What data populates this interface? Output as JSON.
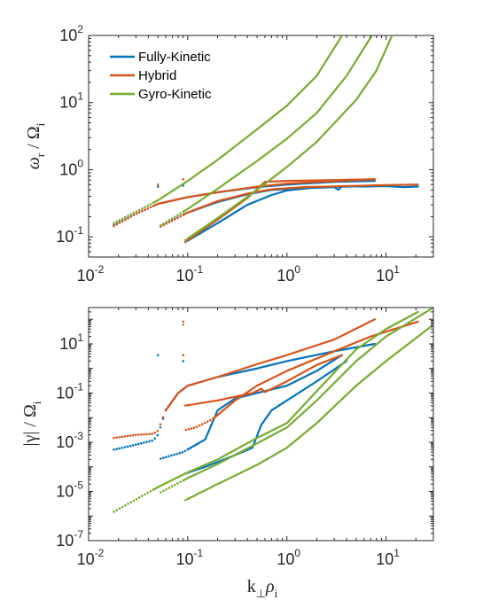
{
  "chart_data": [
    {
      "type": "line",
      "x_scale": "log",
      "y_scale": "log",
      "xlim": [
        0.01,
        30
      ],
      "ylim": [
        0.05,
        100
      ],
      "ylabel": {
        "main": "ω",
        "sub1": "r",
        "sep": " / Ω",
        "sub2": "i"
      },
      "xticks": [
        {
          "value": 0.01,
          "base": "10",
          "exp": "-2"
        },
        {
          "value": 0.1,
          "base": "10",
          "exp": "-1"
        },
        {
          "value": 1,
          "base": "10",
          "exp": "0"
        },
        {
          "value": 10,
          "base": "10",
          "exp": "1"
        }
      ],
      "yticks": [
        {
          "value": 0.1,
          "base": "10",
          "exp": "-1"
        },
        {
          "value": 1,
          "base": "10",
          "exp": "0"
        },
        {
          "value": 10,
          "base": "10",
          "exp": "1"
        },
        {
          "value": 100,
          "base": "10",
          "exp": "2"
        }
      ],
      "legend": {
        "position": "top-left",
        "entries": [
          {
            "name": "Fully-Kinetic",
            "color": "#0072BD"
          },
          {
            "name": "Hybrid",
            "color": "#D95319"
          },
          {
            "name": "Gyro-Kinetic",
            "color": "#77AC30"
          }
        ]
      },
      "series": [
        {
          "model": "Fully-Kinetic",
          "color": "#0072BD",
          "dots_until": 0.045,
          "points": [
            [
              0.018,
              0.15
            ],
            [
              0.03,
              0.22
            ],
            [
              0.05,
              0.31
            ],
            [
              0.1,
              0.39
            ],
            [
              0.2,
              0.46
            ],
            [
              0.5,
              0.55
            ],
            [
              1,
              0.6
            ],
            [
              3,
              0.66
            ],
            [
              7.7,
              0.68
            ]
          ]
        },
        {
          "model": "Fully-Kinetic",
          "color": "#0072BD",
          "dots_until": 0.09,
          "points": [
            [
              0.05,
              0.14
            ],
            [
              0.1,
              0.23
            ],
            [
              0.2,
              0.33
            ],
            [
              0.4,
              0.43
            ],
            [
              0.7,
              0.5
            ],
            [
              1.5,
              0.53
            ],
            [
              3,
              0.55
            ],
            [
              3.3,
              0.5
            ],
            [
              3.6,
              0.57
            ],
            [
              6,
              0.56
            ],
            [
              10,
              0.57
            ],
            [
              15,
              0.55
            ],
            [
              21,
              0.56
            ]
          ]
        },
        {
          "model": "Fully-Kinetic",
          "color": "#0072BD",
          "dots_until": 0.1,
          "points": [
            [
              0.09,
              0.08
            ],
            [
              0.2,
              0.16
            ],
            [
              0.4,
              0.3
            ],
            [
              0.7,
              0.42
            ],
            [
              1,
              0.49
            ],
            [
              2,
              0.55
            ],
            [
              4,
              0.56
            ],
            [
              7.7,
              0.58
            ]
          ]
        },
        {
          "model": "Hybrid",
          "color": "#D95319",
          "dots_until": 0.045,
          "points": [
            [
              0.018,
              0.145
            ],
            [
              0.03,
              0.22
            ],
            [
              0.05,
              0.31
            ],
            [
              0.1,
              0.39
            ],
            [
              0.2,
              0.46
            ],
            [
              0.5,
              0.56
            ],
            [
              1,
              0.62
            ],
            [
              3,
              0.68
            ],
            [
              7.7,
              0.72
            ]
          ]
        },
        {
          "model": "Hybrid",
          "color": "#D95319",
          "dots_until": 0.09,
          "points": [
            [
              0.05,
              0.135
            ],
            [
              0.1,
              0.23
            ],
            [
              0.2,
              0.34
            ],
            [
              0.4,
              0.44
            ],
            [
              0.7,
              0.51
            ],
            [
              1.5,
              0.55
            ],
            [
              4,
              0.57
            ],
            [
              10,
              0.59
            ],
            [
              21,
              0.6
            ]
          ]
        },
        {
          "model": "Hybrid",
          "color": "#D95319",
          "dots_until": 0.1,
          "points": [
            [
              0.09,
              0.08
            ],
            [
              0.2,
              0.18
            ],
            [
              0.4,
              0.38
            ],
            [
              0.6,
              0.66
            ],
            [
              1,
              0.68
            ],
            [
              3,
              0.7
            ],
            [
              7.7,
              0.72
            ]
          ]
        },
        {
          "model": "Gyro-Kinetic",
          "color": "#77AC30",
          "dots_until": 0.045,
          "points": [
            [
              0.018,
              0.16
            ],
            [
              0.05,
              0.35
            ],
            [
              0.1,
              0.68
            ],
            [
              0.2,
              1.4
            ],
            [
              0.5,
              4
            ],
            [
              1,
              9
            ],
            [
              2,
              25
            ],
            [
              3.6,
              100
            ]
          ]
        },
        {
          "model": "Gyro-Kinetic",
          "color": "#77AC30",
          "dots_until": 0.09,
          "points": [
            [
              0.05,
              0.14
            ],
            [
              0.1,
              0.26
            ],
            [
              0.2,
              0.52
            ],
            [
              0.5,
              1.35
            ],
            [
              1,
              2.9
            ],
            [
              2,
              7
            ],
            [
              4,
              25
            ],
            [
              7.2,
              100
            ]
          ]
        },
        {
          "model": "Gyro-Kinetic",
          "color": "#77AC30",
          "dots_until": 0.1,
          "points": [
            [
              0.09,
              0.085
            ],
            [
              0.2,
              0.19
            ],
            [
              0.5,
              0.5
            ],
            [
              1,
              1.1
            ],
            [
              2,
              2.6
            ],
            [
              5,
              11
            ],
            [
              8,
              30
            ],
            [
              11.5,
              100
            ]
          ]
        }
      ]
    },
    {
      "type": "line",
      "x_scale": "log",
      "y_scale": "log",
      "xlim": [
        0.01,
        30
      ],
      "ylim": [
        1e-07,
        300
      ],
      "xlabel": {
        "main": "k",
        "sub1": "⊥",
        "main2": "ρ",
        "sub2": "i"
      },
      "ylabel": {
        "main": "|γ| / Ω",
        "sub2": "i"
      },
      "xticks": [
        {
          "value": 0.01,
          "base": "10",
          "exp": "-2"
        },
        {
          "value": 0.1,
          "base": "10",
          "exp": "-1"
        },
        {
          "value": 1,
          "base": "10",
          "exp": "0"
        },
        {
          "value": 10,
          "base": "10",
          "exp": "1"
        }
      ],
      "yticks": [
        {
          "value": 1e-07,
          "base": "10",
          "exp": "-7"
        },
        {
          "value": 1e-05,
          "base": "10",
          "exp": "-5"
        },
        {
          "value": 0.001,
          "base": "10",
          "exp": "-3"
        },
        {
          "value": 0.1,
          "base": "10",
          "exp": "-1"
        },
        {
          "value": 10,
          "base": "10",
          "exp": "1"
        }
      ],
      "series": [
        {
          "model": "Fully-Kinetic",
          "color": "#0072BD",
          "dots_until": 0.06,
          "points": [
            [
              0.018,
              0.0005
            ],
            [
              0.03,
              0.0008
            ],
            [
              0.045,
              0.0012
            ],
            [
              0.05,
              0.002
            ],
            [
              0.06,
              0.02
            ],
            [
              0.08,
              0.1
            ],
            [
              0.1,
              0.2
            ],
            [
              0.2,
              0.45
            ],
            [
              0.5,
              1
            ],
            [
              1,
              2
            ],
            [
              3,
              5
            ],
            [
              7.7,
              10
            ]
          ]
        },
        {
          "model": "Fully-Kinetic",
          "color": "#0072BD",
          "dots_until": 0.1,
          "points": [
            [
              0.05,
              0.0002
            ],
            [
              0.09,
              0.0004
            ],
            [
              0.15,
              0.0013
            ],
            [
              0.2,
              0.02
            ],
            [
              0.3,
              0.06
            ],
            [
              0.5,
              0.1
            ],
            [
              1,
              0.2
            ],
            [
              2,
              0.8
            ],
            [
              3.6,
              3.5
            ]
          ]
        },
        {
          "model": "Fully-Kinetic",
          "color": "#0072BD",
          "dots_until": 0.1,
          "points": [
            [
              0.09,
              5e-05
            ],
            [
              0.15,
              0.0001
            ],
            [
              0.3,
              0.0003
            ],
            [
              0.45,
              0.0006
            ],
            [
              0.55,
              0.005
            ],
            [
              0.7,
              0.02
            ],
            [
              1,
              0.05
            ],
            [
              2,
              0.3
            ],
            [
              4,
              2
            ]
          ]
        },
        {
          "model": "Hybrid",
          "color": "#D95319",
          "dots_until": 0.06,
          "points": [
            [
              0.018,
              0.0015
            ],
            [
              0.03,
              0.002
            ],
            [
              0.045,
              0.0022
            ],
            [
              0.05,
              0.003
            ],
            [
              0.06,
              0.02
            ],
            [
              0.08,
              0.1
            ],
            [
              0.1,
              0.2
            ],
            [
              0.2,
              0.45
            ],
            [
              0.5,
              1.5
            ],
            [
              1,
              3.5
            ],
            [
              3,
              15
            ],
            [
              7.7,
              100
            ]
          ]
        },
        {
          "model": "Hybrid",
          "color": "#D95319",
          "dots_until": 0.18,
          "points": [
            [
              0.09,
              0.003
            ],
            [
              0.12,
              0.004
            ],
            [
              0.18,
              0.009
            ],
            [
              0.3,
              0.05
            ],
            [
              0.5,
              0.2
            ],
            [
              1,
              0.8
            ],
            [
              3,
              5
            ],
            [
              7,
              20
            ],
            [
              21,
              80
            ]
          ]
        },
        {
          "model": "Hybrid",
          "color": "#D95319",
          "dots_until": 0.1,
          "points": [
            [
              0.09,
              0.03
            ],
            [
              0.2,
              0.05
            ],
            [
              0.45,
              0.1
            ],
            [
              0.55,
              0.15
            ],
            [
              0.6,
              0.11
            ],
            [
              1,
              0.3
            ],
            [
              2,
              1.4
            ],
            [
              3.6,
              3.5
            ]
          ]
        },
        {
          "model": "Gyro-Kinetic",
          "color": "#77AC30",
          "dots_until": 0.045,
          "points": [
            [
              0.018,
              1.5e-06
            ],
            [
              0.05,
              1.5e-05
            ],
            [
              0.1,
              6e-05
            ],
            [
              0.2,
              0.0002
            ],
            [
              0.5,
              0.0015
            ],
            [
              1,
              0.006
            ],
            [
              2,
              0.12
            ],
            [
              5,
              6
            ],
            [
              10,
              40
            ],
            [
              21,
              200
            ]
          ]
        },
        {
          "model": "Gyro-Kinetic",
          "color": "#77AC30",
          "dots_until": 0.09,
          "points": [
            [
              0.05,
              8e-06
            ],
            [
              0.1,
              3.5e-05
            ],
            [
              0.2,
              0.00013
            ],
            [
              0.5,
              0.0009
            ],
            [
              1,
              0.004
            ],
            [
              2,
              0.05
            ],
            [
              5,
              2
            ],
            [
              10,
              20
            ],
            [
              30,
              300
            ]
          ]
        },
        {
          "model": "Gyro-Kinetic",
          "color": "#77AC30",
          "dots_until": 0.1,
          "points": [
            [
              0.09,
              4e-06
            ],
            [
              0.2,
              2e-05
            ],
            [
              0.5,
              0.00012
            ],
            [
              1,
              0.0006
            ],
            [
              2,
              0.006
            ],
            [
              5,
              0.2
            ],
            [
              10,
              2
            ],
            [
              30,
              60
            ]
          ]
        }
      ]
    }
  ]
}
